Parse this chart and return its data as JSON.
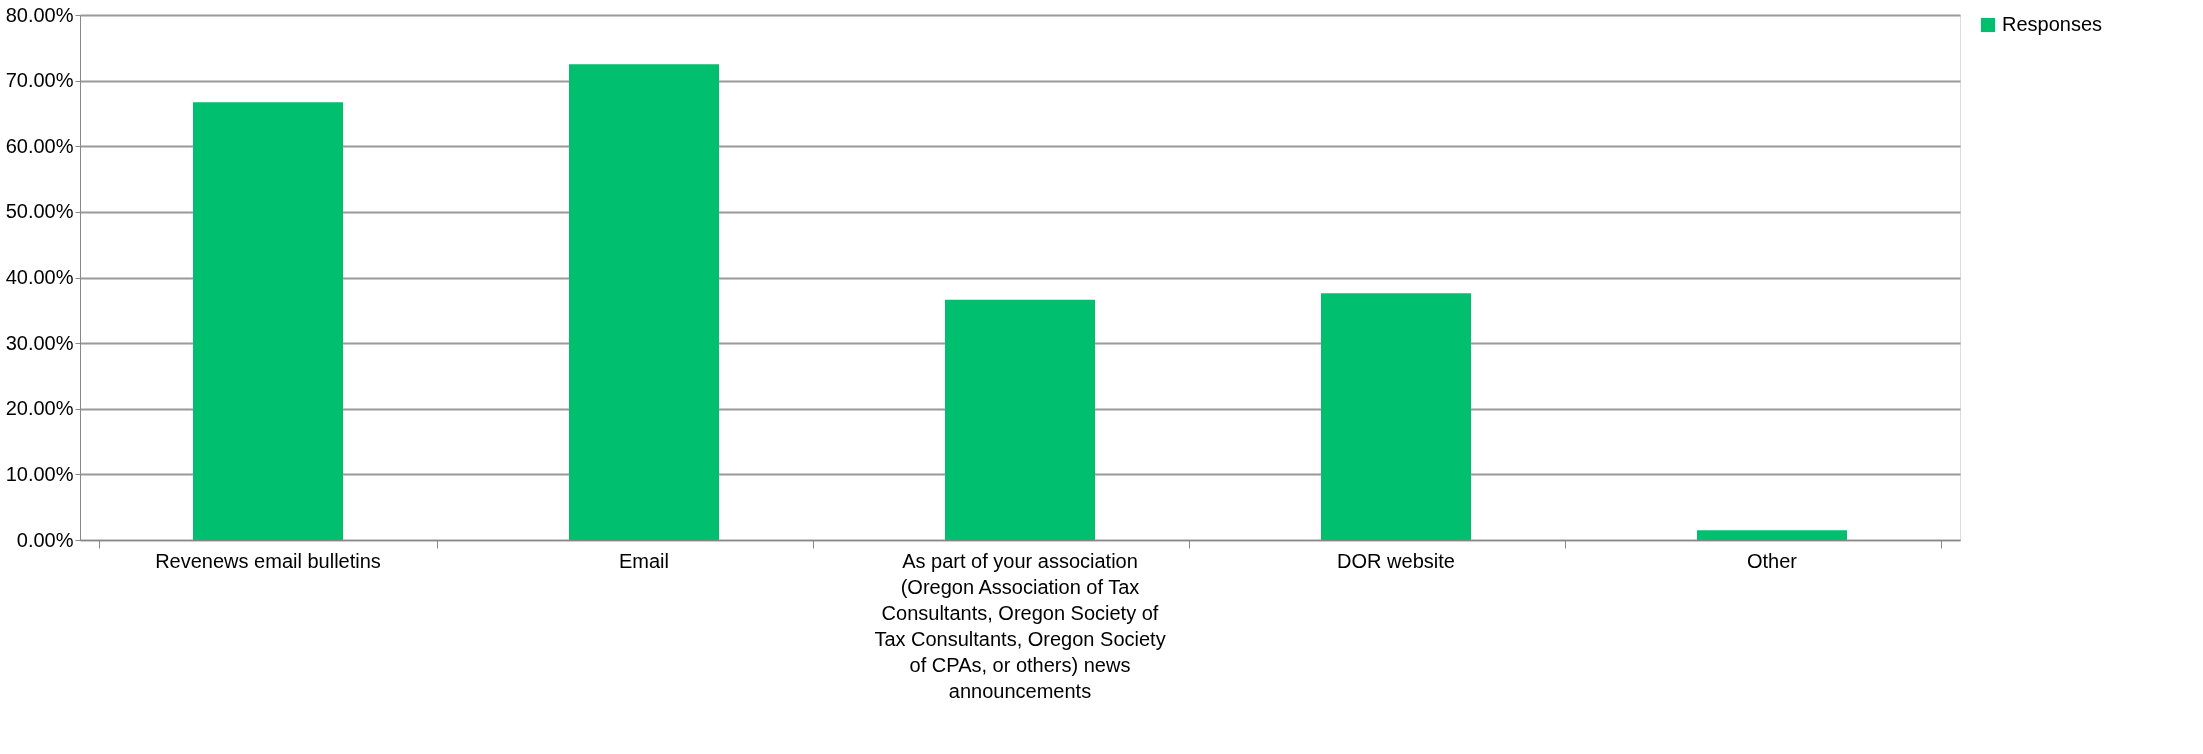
{
  "chart_data": {
    "type": "bar",
    "categories": [
      "Revenews email bulletins",
      "Email",
      "As part of your association (Oregon Association of Tax Consultants, Oregon Society of Tax Consultants, Oregon Society of CPAs, or others) news announcements",
      "DOR website",
      "Other"
    ],
    "series": [
      {
        "name": "Responses",
        "color": "#00bf6f",
        "values": [
          66.7,
          72.5,
          36.6,
          37.6,
          1.5
        ]
      }
    ],
    "ylim": [
      0,
      80
    ],
    "yticks": [
      {
        "value": 0,
        "label": "0.00%"
      },
      {
        "value": 10,
        "label": "10.00%"
      },
      {
        "value": 20,
        "label": "20.00%"
      },
      {
        "value": 30,
        "label": "30.00%"
      },
      {
        "value": 40,
        "label": "40.00%"
      },
      {
        "value": 50,
        "label": "50.00%"
      },
      {
        "value": 60,
        "label": "60.00%"
      },
      {
        "value": 70,
        "label": "70.00%"
      },
      {
        "value": 80,
        "label": "80.00%"
      }
    ],
    "grid": "y",
    "legend": "right"
  }
}
